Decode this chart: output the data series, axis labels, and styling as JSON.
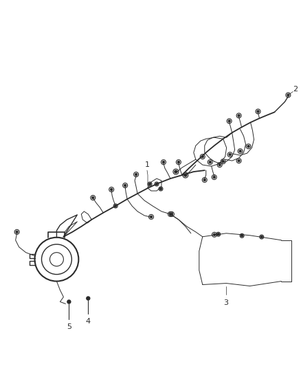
{
  "background_color": "#ffffff",
  "line_color": "#2a2a2a",
  "label_color": "#2a2a2a",
  "label_fontsize": 8,
  "figsize": [
    4.38,
    5.33
  ],
  "dpi": 100,
  "lw_main": 1.0,
  "lw_thin": 0.7,
  "lw_thick": 1.3
}
